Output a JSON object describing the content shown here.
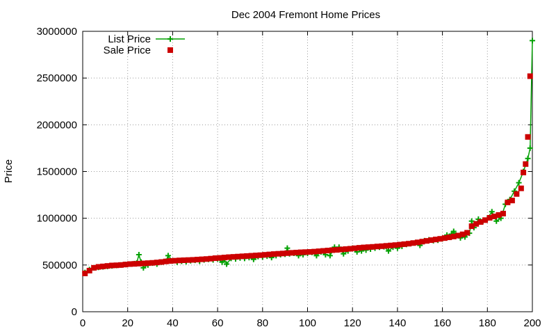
{
  "chart_data": {
    "type": "scatter",
    "title": "Dec 2004 Fremont Home Prices",
    "xlabel": "",
    "ylabel": "Price",
    "xlim": [
      0,
      200
    ],
    "ylim": [
      0,
      3000000
    ],
    "x_ticks": [
      0,
      20,
      40,
      60,
      80,
      100,
      120,
      140,
      160,
      180,
      200
    ],
    "y_ticks": [
      0,
      500000,
      1000000,
      1500000,
      2000000,
      2500000,
      3000000
    ],
    "x_tick_labels": [
      "0",
      "20",
      "40",
      "60",
      "80",
      "100",
      "120",
      "140",
      "160",
      "180",
      "200"
    ],
    "y_tick_labels": [
      "0",
      "500000",
      "1000000",
      "1500000",
      "2000000",
      "2500000",
      "3000000"
    ],
    "grid": true,
    "legend_position": "top-left",
    "series": [
      {
        "name": "List Price",
        "style": "line-with-plus-markers",
        "color": "#00a000",
        "x": [
          1,
          3,
          5,
          7,
          9,
          11,
          13,
          15,
          17,
          19,
          21,
          23,
          24,
          25,
          26,
          27,
          29,
          31,
          33,
          35,
          37,
          38,
          40,
          42,
          44,
          46,
          48,
          50,
          52,
          54,
          56,
          58,
          60,
          62,
          63,
          64,
          66,
          68,
          70,
          72,
          74,
          76,
          78,
          80,
          82,
          84,
          86,
          88,
          90,
          91,
          92,
          94,
          96,
          98,
          100,
          102,
          104,
          106,
          108,
          110,
          112,
          114,
          116,
          118,
          120,
          122,
          124,
          126,
          128,
          130,
          132,
          134,
          136,
          138,
          140,
          142,
          144,
          146,
          148,
          150,
          152,
          154,
          156,
          158,
          160,
          162,
          164,
          165,
          166,
          168,
          170,
          172,
          173,
          174,
          176,
          178,
          180,
          182,
          184,
          186,
          188,
          190,
          192,
          194,
          196,
          198,
          199,
          200
        ],
        "y": [
          420000,
          450000,
          470000,
          475000,
          480000,
          485000,
          490000,
          495000,
          500000,
          505000,
          510000,
          515000,
          520000,
          610000,
          530000,
          470000,
          500000,
          520000,
          510000,
          530000,
          540000,
          600000,
          545000,
          530000,
          540000,
          535000,
          545000,
          550000,
          540000,
          555000,
          560000,
          555000,
          565000,
          530000,
          560000,
          510000,
          570000,
          565000,
          575000,
          570000,
          580000,
          560000,
          590000,
          585000,
          595000,
          580000,
          600000,
          610000,
          615000,
          680000,
          620000,
          625000,
          600000,
          610000,
          625000,
          635000,
          600000,
          640000,
          610000,
          600000,
          690000,
          690000,
          620000,
          650000,
          680000,
          640000,
          650000,
          660000,
          670000,
          680000,
          690000,
          695000,
          650000,
          690000,
          680000,
          700000,
          720000,
          730000,
          740000,
          710000,
          760000,
          770000,
          760000,
          765000,
          780000,
          820000,
          830000,
          860000,
          820000,
          790000,
          800000,
          840000,
          970000,
          900000,
          990000,
          970000,
          1000000,
          1070000,
          970000,
          1000000,
          1150000,
          1200000,
          1290000,
          1380000,
          1500000,
          1640000,
          1750000,
          2900000
        ]
      },
      {
        "name": "Sale Price",
        "style": "square-markers",
        "color": "#cc0000",
        "x": [
          1,
          3,
          5,
          7,
          9,
          11,
          13,
          15,
          17,
          19,
          21,
          23,
          25,
          27,
          29,
          31,
          33,
          35,
          37,
          39,
          41,
          43,
          45,
          47,
          49,
          51,
          53,
          55,
          57,
          59,
          61,
          63,
          65,
          67,
          69,
          71,
          73,
          75,
          77,
          79,
          81,
          83,
          85,
          87,
          89,
          91,
          93,
          95,
          97,
          99,
          101,
          103,
          105,
          107,
          109,
          111,
          113,
          115,
          117,
          119,
          121,
          123,
          125,
          127,
          129,
          131,
          133,
          135,
          137,
          139,
          141,
          143,
          145,
          147,
          149,
          151,
          153,
          155,
          157,
          159,
          161,
          163,
          165,
          167,
          169,
          171,
          173,
          175,
          177,
          179,
          181,
          183,
          185,
          187,
          189,
          191,
          193,
          195,
          196,
          197,
          198,
          199
        ],
        "y": [
          410000,
          440000,
          470000,
          480000,
          485000,
          490000,
          495000,
          497000,
          500000,
          505000,
          510000,
          512000,
          515000,
          517000,
          520000,
          523000,
          527000,
          532000,
          538000,
          543000,
          546000,
          549000,
          551000,
          553000,
          555000,
          558000,
          561000,
          564000,
          568000,
          573000,
          576000,
          580000,
          584000,
          587000,
          590000,
          593000,
          596000,
          599000,
          602000,
          605000,
          609000,
          613000,
          617000,
          620000,
          623000,
          627000,
          630000,
          633000,
          636000,
          638000,
          640000,
          643000,
          647000,
          651000,
          655000,
          659000,
          662000,
          666000,
          670000,
          674000,
          679000,
          684000,
          688000,
          691000,
          694000,
          698000,
          701000,
          705000,
          709000,
          713000,
          718000,
          723000,
          728000,
          735000,
          742000,
          750000,
          758000,
          766000,
          773000,
          780000,
          788000,
          796000,
          805000,
          815000,
          828000,
          845000,
          915000,
          940000,
          960000,
          980000,
          1005000,
          1020000,
          1035000,
          1050000,
          1170000,
          1190000,
          1260000,
          1320000,
          1490000,
          1580000,
          1870000,
          2520000
        ]
      }
    ]
  }
}
